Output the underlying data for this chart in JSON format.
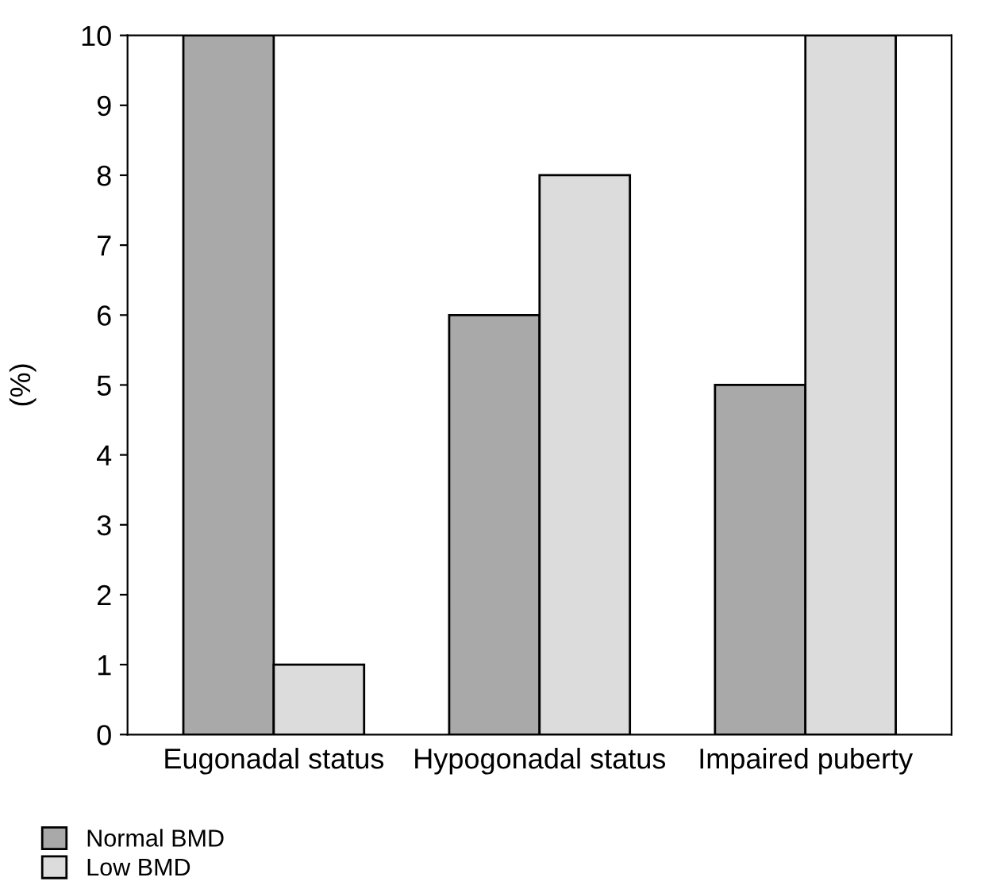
{
  "chart_data": {
    "type": "bar",
    "ylabel": "(%)",
    "categories": [
      "Eugonadal status",
      "Hypogonadal status",
      "Impaired puberty"
    ],
    "series": [
      {
        "name": "Normal BMD",
        "color": "#a9a9a9",
        "values": [
          10,
          6,
          5
        ]
      },
      {
        "name": "Low BMD",
        "color": "#dcdcdc",
        "values": [
          1,
          8,
          10
        ]
      }
    ],
    "ylim": [
      0,
      10
    ],
    "yticks": [
      0,
      1,
      2,
      3,
      4,
      5,
      6,
      7,
      8,
      9,
      10
    ],
    "grid": false,
    "legend": "bottom"
  }
}
